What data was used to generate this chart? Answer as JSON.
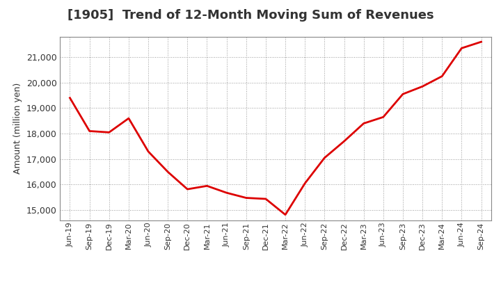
{
  "title": "[1905]  Trend of 12-Month Moving Sum of Revenues",
  "ylabel": "Amount (million yen)",
  "line_color": "#dd0000",
  "line_width": 2.0,
  "background_color": "#ffffff",
  "grid_color": "#999999",
  "tick_labels": [
    "Jun-19",
    "Sep-19",
    "Dec-19",
    "Mar-20",
    "Jun-20",
    "Sep-20",
    "Dec-20",
    "Mar-21",
    "Jun-21",
    "Sep-21",
    "Dec-21",
    "Mar-22",
    "Jun-22",
    "Sep-22",
    "Dec-22",
    "Mar-23",
    "Jun-23",
    "Sep-23",
    "Dec-23",
    "Mar-24",
    "Jun-24",
    "Sep-24"
  ],
  "values": [
    19400,
    18100,
    18050,
    18600,
    17300,
    16500,
    15820,
    15950,
    15680,
    15480,
    15440,
    14820,
    16050,
    17050,
    17700,
    18400,
    18650,
    19550,
    19850,
    20250,
    21350,
    21600
  ],
  "ylim": [
    14600,
    21800
  ],
  "yticks": [
    15000,
    16000,
    17000,
    18000,
    19000,
    20000,
    21000
  ],
  "title_fontsize": 13,
  "ylabel_fontsize": 9,
  "tick_fontsize": 8
}
